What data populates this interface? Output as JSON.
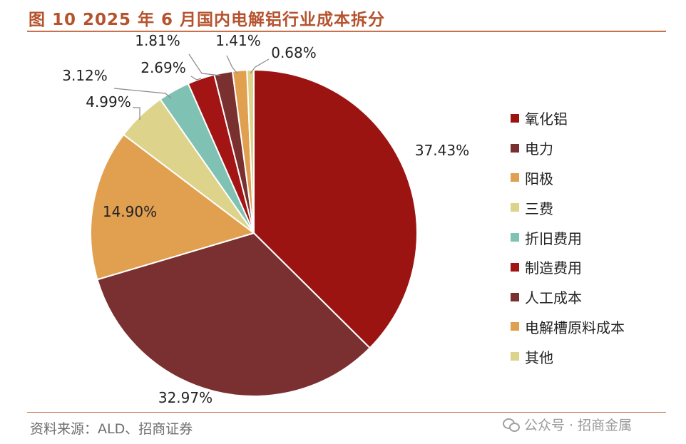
{
  "title": "图 10 2025 年 6 月国内电解铝行业成本拆分",
  "source": "资料来源：ALD、招商证券",
  "watermark": "公众号 · 招商金属",
  "colors": {
    "title": "#b5532e",
    "rule": "#c8714a"
  },
  "chart_data": {
    "type": "pie",
    "title": "",
    "slices": [
      {
        "label": "氧化铝",
        "value": 37.43,
        "display": "37.43%",
        "color": "#9b1412"
      },
      {
        "label": "电力",
        "value": 32.97,
        "display": "32.97%",
        "color": "#7a3030"
      },
      {
        "label": "阳极",
        "value": 14.9,
        "display": "14.90%",
        "color": "#e0a050"
      },
      {
        "label": "三费",
        "value": 4.99,
        "display": "4.99%",
        "color": "#ddd38a"
      },
      {
        "label": "折旧费用",
        "value": 3.12,
        "display": "3.12%",
        "color": "#7fc1b2"
      },
      {
        "label": "制造费用",
        "value": 2.69,
        "display": "2.69%",
        "color": "#a31515"
      },
      {
        "label": "人工成本",
        "value": 1.81,
        "display": "1.81%",
        "color": "#7b3030"
      },
      {
        "label": "电解槽原料成本",
        "value": 1.41,
        "display": "1.41%",
        "color": "#e0a050"
      },
      {
        "label": "其他",
        "value": 0.68,
        "display": "0.68%",
        "color": "#ddd38a"
      }
    ],
    "legend_position": "right"
  }
}
